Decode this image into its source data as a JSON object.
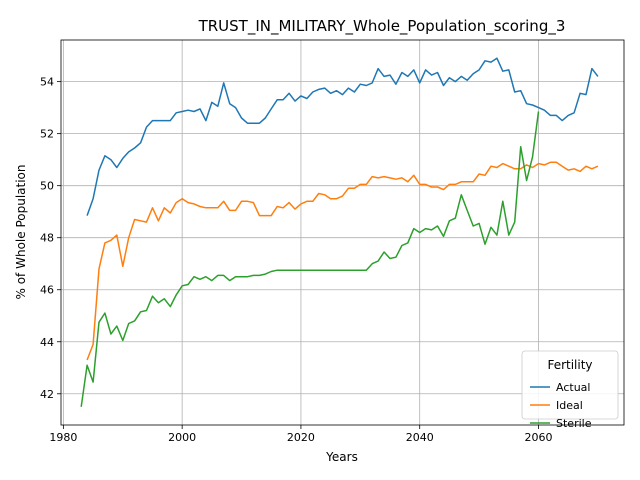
{
  "chart_data": {
    "type": "line",
    "title": "TRUST_IN_MILITARY_Whole_Population_scoring_3",
    "xlabel": "Years",
    "ylabel": "% of Whole Population",
    "xlim": [
      1979.6,
      2074.4
    ],
    "ylim": [
      40.8,
      55.6
    ],
    "xticks": [
      1980,
      2000,
      2020,
      2040,
      2060
    ],
    "yticks": [
      42,
      44,
      46,
      48,
      50,
      52,
      54
    ],
    "grid": true,
    "legend": {
      "title": "Fertility",
      "placement": "lower-right"
    },
    "series": [
      {
        "name": "Actual",
        "color": "#1f77b4",
        "x": [
          1984,
          1985,
          1986,
          1987,
          1988,
          1989,
          1990,
          1991,
          1992,
          1993,
          1994,
          1995,
          1996,
          1997,
          1998,
          1999,
          2000,
          2001,
          2002,
          2003,
          2004,
          2005,
          2006,
          2007,
          2008,
          2009,
          2010,
          2011,
          2012,
          2013,
          2014,
          2015,
          2016,
          2017,
          2018,
          2019,
          2020,
          2021,
          2022,
          2023,
          2024,
          2025,
          2026,
          2027,
          2028,
          2029,
          2030,
          2031,
          2032,
          2033,
          2034,
          2035,
          2036,
          2037,
          2038,
          2039,
          2040,
          2041,
          2042,
          2043,
          2044,
          2045,
          2046,
          2047,
          2048,
          2049,
          2050,
          2051,
          2052,
          2053,
          2054,
          2055,
          2056,
          2057,
          2058,
          2059,
          2060,
          2061,
          2062,
          2063,
          2064,
          2065,
          2066,
          2067,
          2068,
          2069,
          2070
        ],
        "values": [
          48.85,
          49.5,
          50.6,
          51.15,
          51.0,
          50.7,
          51.05,
          51.3,
          51.45,
          51.65,
          52.25,
          52.5,
          52.5,
          52.5,
          52.5,
          52.8,
          52.85,
          52.9,
          52.85,
          52.95,
          52.5,
          53.2,
          53.05,
          53.95,
          53.15,
          53.0,
          52.6,
          52.4,
          52.4,
          52.4,
          52.6,
          52.95,
          53.3,
          53.3,
          53.55,
          53.25,
          53.45,
          53.35,
          53.6,
          53.7,
          53.75,
          53.55,
          53.65,
          53.5,
          53.75,
          53.6,
          53.9,
          53.85,
          53.95,
          54.5,
          54.2,
          54.25,
          53.9,
          54.35,
          54.2,
          54.45,
          53.95,
          54.45,
          54.25,
          54.35,
          53.85,
          54.15,
          54.0,
          54.2,
          54.05,
          54.3,
          54.45,
          54.8,
          54.75,
          54.9,
          54.4,
          54.45,
          53.6,
          53.65,
          53.15,
          53.1,
          53.0,
          52.9,
          52.7,
          52.7,
          52.5,
          52.7,
          52.8,
          53.55,
          53.5,
          54.5,
          54.2
        ]
      },
      {
        "name": "Ideal",
        "color": "#ff7f0e",
        "x": [
          1984,
          1985,
          1986,
          1987,
          1988,
          1989,
          1990,
          1991,
          1992,
          1993,
          1994,
          1995,
          1996,
          1997,
          1998,
          1999,
          2000,
          2001,
          2002,
          2003,
          2004,
          2005,
          2006,
          2007,
          2008,
          2009,
          2010,
          2011,
          2012,
          2013,
          2014,
          2015,
          2016,
          2017,
          2018,
          2019,
          2020,
          2021,
          2022,
          2023,
          2024,
          2025,
          2026,
          2027,
          2028,
          2029,
          2030,
          2031,
          2032,
          2033,
          2034,
          2035,
          2036,
          2037,
          2038,
          2039,
          2040,
          2041,
          2042,
          2043,
          2044,
          2045,
          2046,
          2047,
          2048,
          2049,
          2050,
          2051,
          2052,
          2053,
          2054,
          2055,
          2056,
          2057,
          2058,
          2059,
          2060,
          2061,
          2062,
          2063,
          2064,
          2065,
          2066,
          2067,
          2068,
          2069,
          2070
        ],
        "values": [
          43.3,
          43.9,
          46.8,
          47.8,
          47.9,
          48.1,
          46.9,
          48.0,
          48.7,
          48.65,
          48.6,
          49.15,
          48.65,
          49.15,
          48.95,
          49.35,
          49.5,
          49.35,
          49.3,
          49.2,
          49.15,
          49.15,
          49.15,
          49.4,
          49.05,
          49.05,
          49.4,
          49.4,
          49.35,
          48.85,
          48.85,
          48.85,
          49.2,
          49.15,
          49.35,
          49.1,
          49.3,
          49.4,
          49.4,
          49.7,
          49.65,
          49.5,
          49.5,
          49.6,
          49.9,
          49.9,
          50.05,
          50.05,
          50.35,
          50.3,
          50.35,
          50.3,
          50.25,
          50.3,
          50.15,
          50.4,
          50.05,
          50.05,
          49.95,
          49.95,
          49.85,
          50.05,
          50.05,
          50.15,
          50.15,
          50.15,
          50.45,
          50.4,
          50.75,
          50.7,
          50.85,
          50.75,
          50.65,
          50.65,
          50.8,
          50.7,
          50.85,
          50.8,
          50.9,
          50.9,
          50.75,
          50.6,
          50.65,
          50.55,
          50.75,
          50.65,
          50.75
        ]
      },
      {
        "name": "Sterile",
        "color": "#2ca02c",
        "x": [
          1983,
          1984,
          1985,
          1986,
          1987,
          1988,
          1989,
          1990,
          1991,
          1992,
          1993,
          1994,
          1995,
          1996,
          1997,
          1998,
          1999,
          2000,
          2001,
          2002,
          2003,
          2004,
          2005,
          2006,
          2007,
          2008,
          2009,
          2010,
          2011,
          2012,
          2013,
          2014,
          2015,
          2016,
          2017,
          2018,
          2019,
          2020,
          2021,
          2022,
          2023,
          2024,
          2025,
          2026,
          2027,
          2028,
          2029,
          2030,
          2031,
          2032,
          2033,
          2034,
          2035,
          2036,
          2037,
          2038,
          2039,
          2040,
          2041,
          2042,
          2043,
          2044,
          2045,
          2046,
          2047,
          2048,
          2049,
          2050,
          2051,
          2052,
          2053,
          2054,
          2055,
          2056,
          2057,
          2058,
          2059,
          2060
        ],
        "values": [
          41.5,
          43.1,
          42.45,
          44.75,
          45.1,
          44.3,
          44.6,
          44.05,
          44.7,
          44.8,
          45.15,
          45.2,
          45.75,
          45.5,
          45.65,
          45.35,
          45.8,
          46.15,
          46.2,
          46.5,
          46.4,
          46.5,
          46.35,
          46.55,
          46.55,
          46.35,
          46.5,
          46.5,
          46.5,
          46.55,
          46.55,
          46.6,
          46.7,
          46.75,
          46.75,
          46.75,
          46.75,
          46.75,
          46.75,
          46.75,
          46.75,
          46.75,
          46.75,
          46.75,
          46.75,
          46.75,
          46.75,
          46.75,
          46.75,
          47.0,
          47.1,
          47.45,
          47.2,
          47.25,
          47.7,
          47.8,
          48.35,
          48.2,
          48.35,
          48.3,
          48.45,
          48.05,
          48.65,
          48.75,
          49.65,
          49.05,
          48.45,
          48.55,
          47.75,
          48.4,
          48.1,
          49.4,
          48.1,
          48.6,
          51.5,
          50.2,
          51.1,
          52.85
        ]
      }
    ]
  }
}
